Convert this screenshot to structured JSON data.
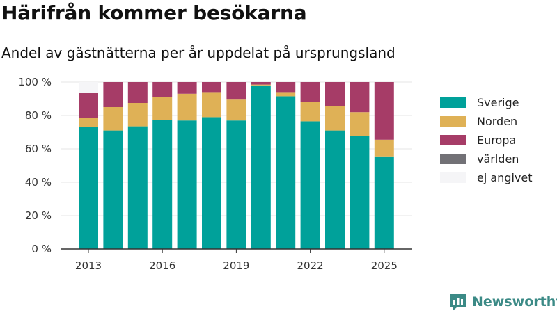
{
  "chart_data": {
    "type": "bar",
    "stacked": true,
    "title": "Härifrån kommer besökarna",
    "subtitle": "Andel av gästnätterna per år uppdelat på ursprungsland",
    "categories": [
      2013,
      2014,
      2015,
      2016,
      2017,
      2018,
      2019,
      2020,
      2021,
      2022,
      2023,
      2024,
      2025
    ],
    "x_tick_labels": [
      "2013",
      "2016",
      "2019",
      "2022",
      "2025"
    ],
    "y_tick_labels": [
      "0 %",
      "20 %",
      "40 %",
      "60 %",
      "80 %",
      "100 %"
    ],
    "ylim": [
      0,
      100
    ],
    "grid": true,
    "legend_position": "right",
    "series": [
      {
        "name": "Sverige",
        "color": "#00a19a",
        "values": [
          73,
          71,
          73.5,
          77.5,
          77,
          79,
          77,
          98,
          91.5,
          76.5,
          71,
          67.5,
          55.5
        ]
      },
      {
        "name": "Norden",
        "color": "#dfb156",
        "values": [
          5.5,
          14,
          14,
          13.5,
          16,
          15,
          12.5,
          0.5,
          2.5,
          11.5,
          14.5,
          14.5,
          10
        ]
      },
      {
        "name": "Europa",
        "color": "#a63c67",
        "values": [
          15,
          15,
          12.5,
          9,
          7,
          6,
          10.5,
          1.5,
          6,
          12,
          14.5,
          18,
          34.5
        ]
      },
      {
        "name": "världen",
        "color": "#727176",
        "values": [
          0,
          0,
          0,
          0,
          0,
          0,
          0,
          0,
          0,
          0,
          0,
          0,
          0
        ]
      },
      {
        "name": "ej angivet",
        "color": "#f5f5f7",
        "values": [
          6.5,
          0,
          0,
          0,
          0,
          0,
          0,
          0,
          0,
          0,
          0,
          0,
          0
        ]
      }
    ]
  },
  "brand": {
    "name": "Newsworthy",
    "color": "#3b8a86"
  }
}
